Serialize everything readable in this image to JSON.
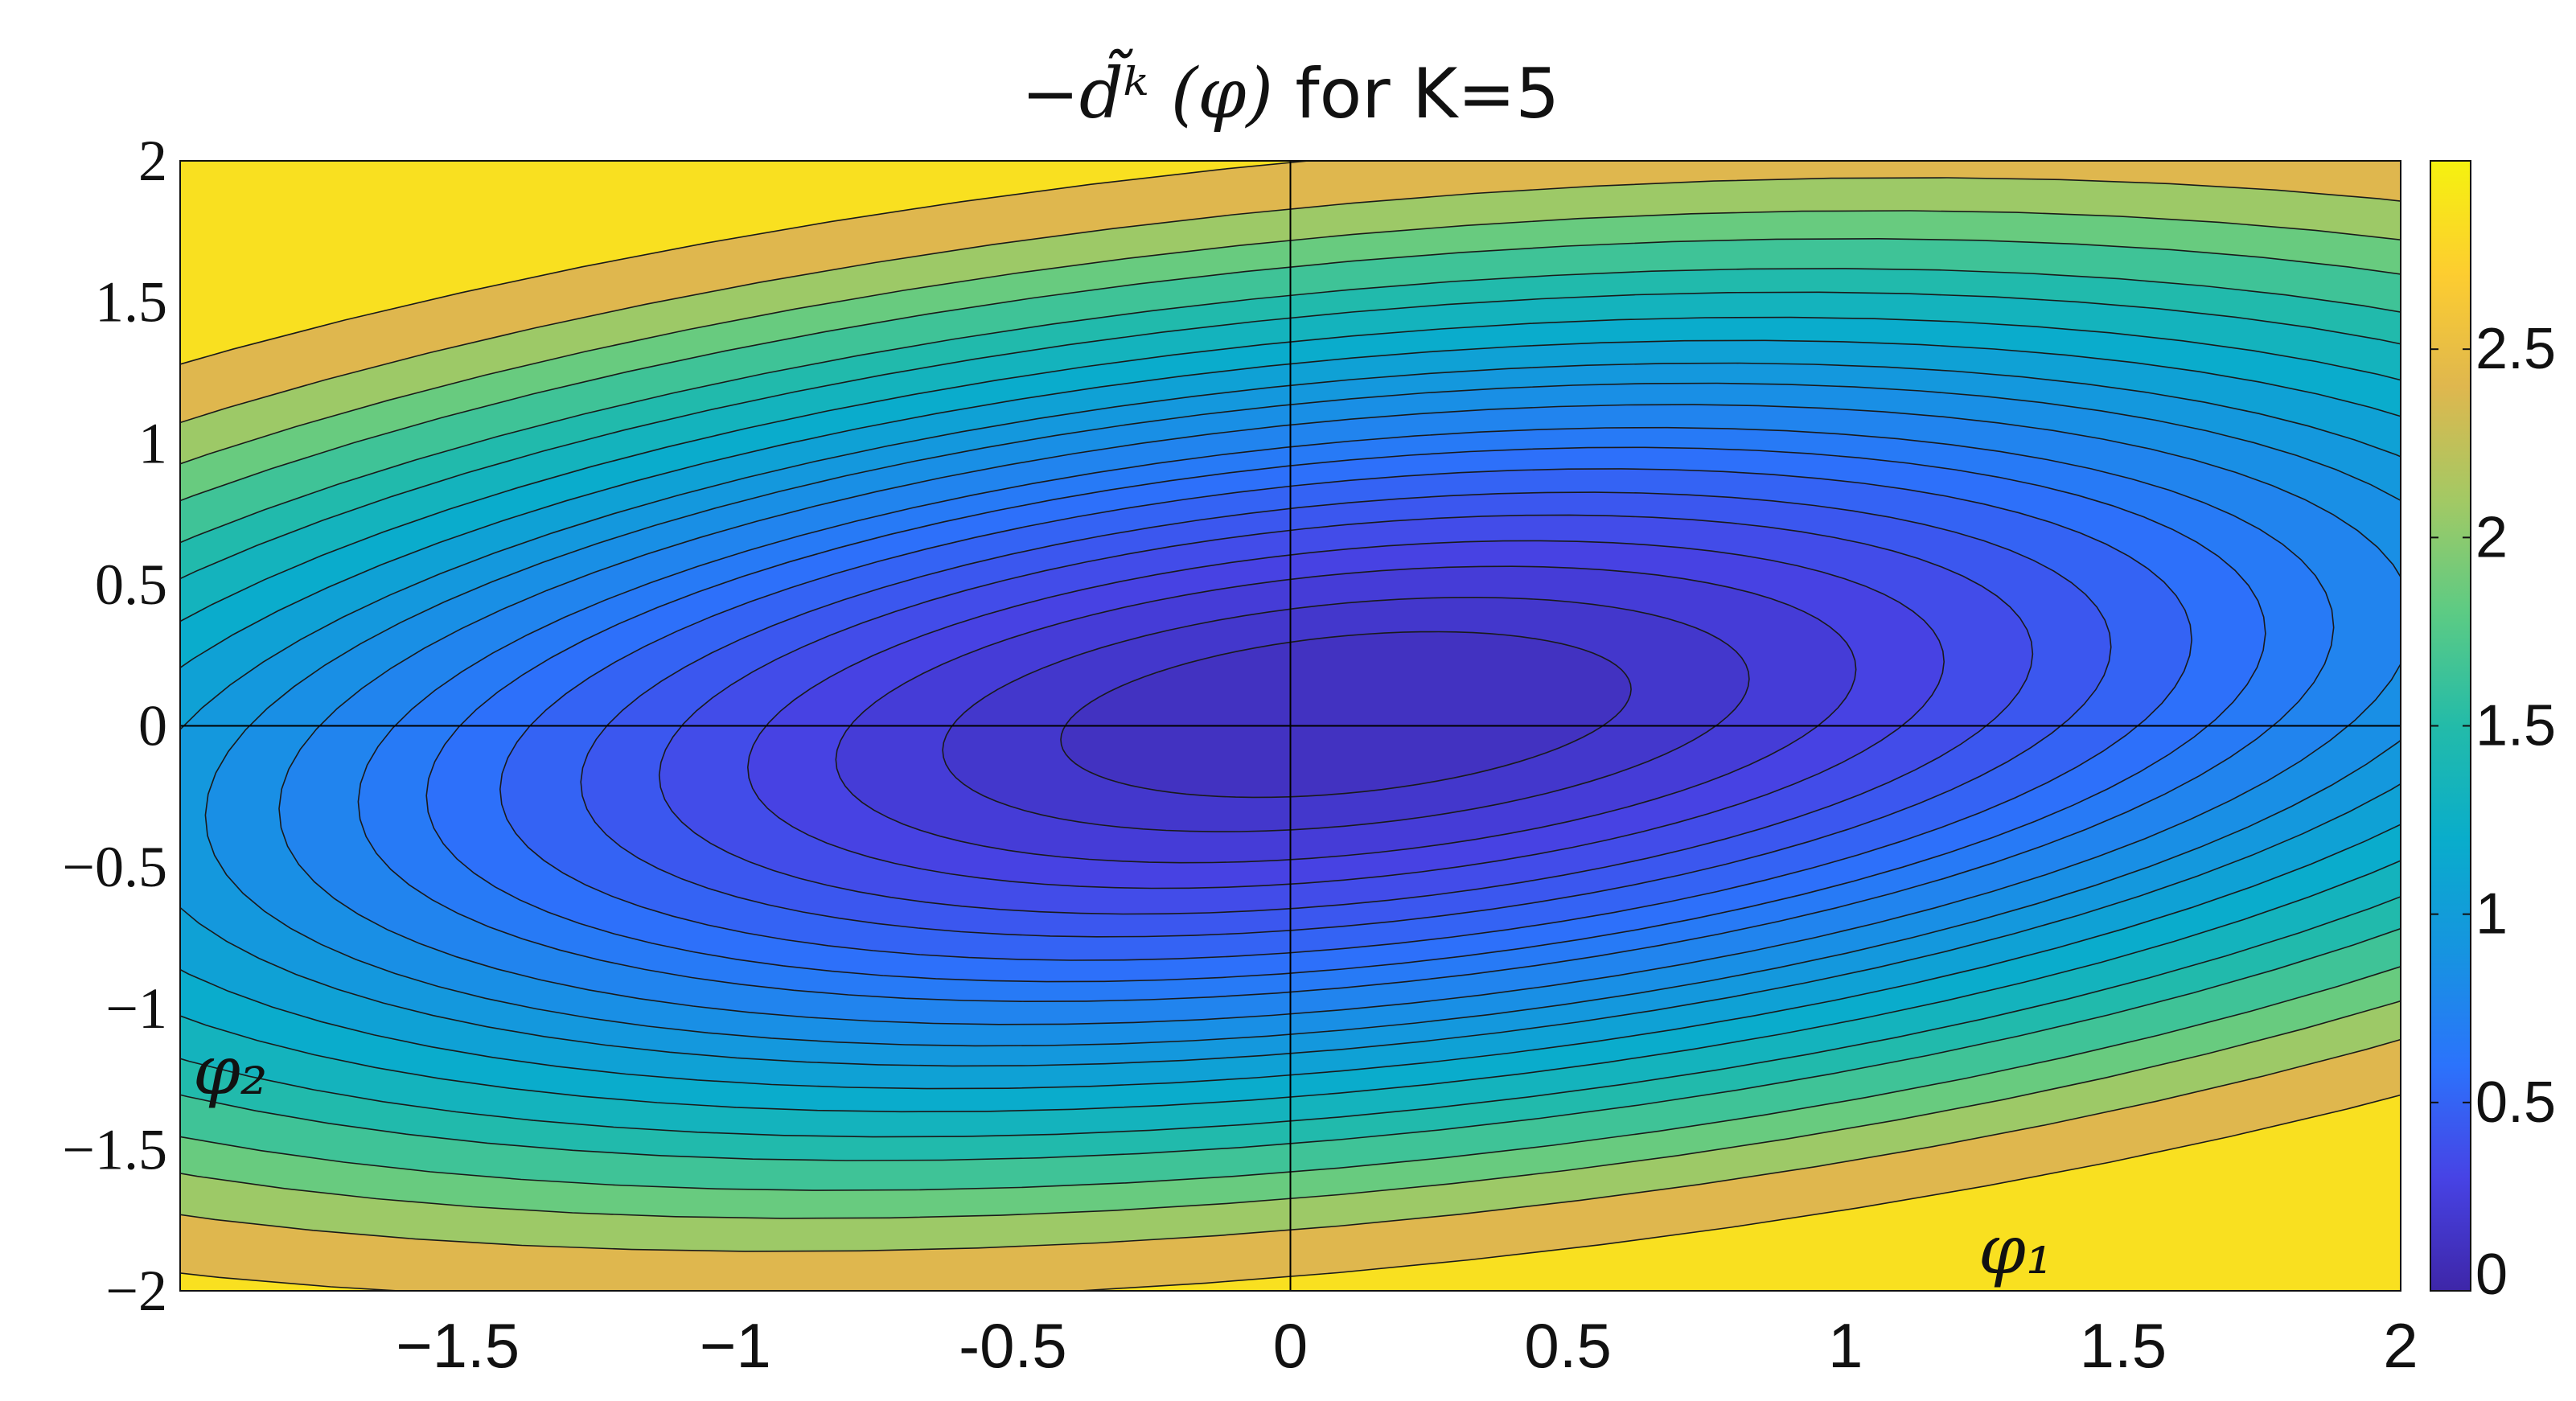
{
  "chart_data": {
    "type": "heatmap",
    "subtype": "filled-contour",
    "title": "−d̃ᵏ (φ) for K=5",
    "x_range": [
      -2,
      2
    ],
    "y_range": [
      -2,
      2
    ],
    "x_ticks": [
      {
        "value": -1.5,
        "label": "−1.5"
      },
      {
        "value": -1,
        "label": "−1"
      },
      {
        "value": -0.5,
        "label": "-0.5"
      },
      {
        "value": 0,
        "label": "0"
      },
      {
        "value": 0.5,
        "label": "0.5"
      },
      {
        "value": 1,
        "label": "1"
      },
      {
        "value": 1.5,
        "label": "1.5"
      },
      {
        "value": 2,
        "label": "2"
      }
    ],
    "y_ticks": [
      {
        "value": 2,
        "label": "2"
      },
      {
        "value": 1.5,
        "label": "1.5"
      },
      {
        "value": 1,
        "label": "1"
      },
      {
        "value": 0.5,
        "label": "0.5"
      },
      {
        "value": 0,
        "label": "0"
      },
      {
        "value": -0.5,
        "label": "−0.5"
      },
      {
        "value": -1,
        "label": "−1"
      },
      {
        "value": -1.5,
        "label": "−1.5"
      },
      {
        "value": -2,
        "label": "−2"
      }
    ],
    "colorbar": {
      "range": [
        0,
        3
      ],
      "ticks": [
        {
          "value": 0,
          "label": "0"
        },
        {
          "value": 0.5,
          "label": "0.5"
        },
        {
          "value": 1,
          "label": "1"
        },
        {
          "value": 1.5,
          "label": "1.5"
        },
        {
          "value": 2,
          "label": "2"
        },
        {
          "value": 2.5,
          "label": "2.5"
        }
      ],
      "colormap": "parula",
      "colors": [
        "#3e26a8",
        "#4743e5",
        "#2b73fc",
        "#1694e0",
        "#09adcb",
        "#23bba9",
        "#5ccb84",
        "#a3c964",
        "#dfb74e",
        "#fdcd30",
        "#f5f20f"
      ]
    },
    "minimum_point": {
      "x": 0.1,
      "y": 0.04,
      "value": 0.1
    },
    "axis_lines": [
      "x=0",
      "y=0"
    ],
    "annotations": [
      {
        "text": "φ₂",
        "position": "left-lower"
      },
      {
        "text": "φ₁",
        "position": "bottom-right"
      }
    ],
    "grid": false
  }
}
